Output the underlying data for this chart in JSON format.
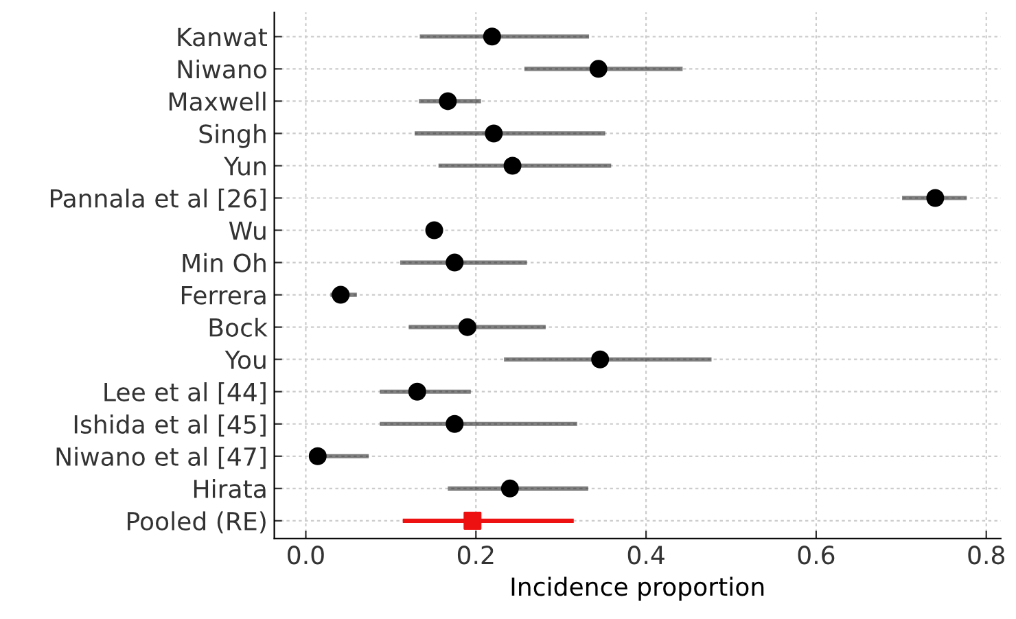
{
  "chart_data": {
    "type": "scatter",
    "orientation": "horizontal",
    "xlabel": "Incidence proportion",
    "categories": [
      "Kanwat",
      "Niwano",
      "Maxwell",
      "Singh",
      "Yun",
      "Pannala et al [26]",
      "Wu",
      "Min Oh",
      "Ferrera",
      "Bock",
      "You",
      "Lee et al [44]",
      "Ishida et al [45]",
      "Niwano et al [47]",
      "Hirata",
      "Pooled (RE)"
    ],
    "xlim": [
      -0.037,
      0.817
    ],
    "xticks": [
      {
        "value": 0,
        "label": "0.0"
      },
      0.2,
      0.4,
      0.6,
      0.8
    ],
    "grid": true,
    "series": [
      {
        "color": "#000000",
        "marker": "circle",
        "values": [
          0.219,
          0.344,
          0.167,
          0.221,
          0.243,
          0.74,
          0.151,
          0.175,
          0.041,
          0.19,
          0.346,
          0.131,
          0.175,
          0.014,
          0.24,
          null
        ],
        "errors": [
          [
            0.134,
            0.333
          ],
          [
            0.257,
            0.443
          ],
          [
            0.133,
            0.206
          ],
          [
            0.128,
            0.352
          ],
          [
            0.156,
            0.359
          ],
          [
            0.701,
            0.777
          ],
          null,
          [
            0.111,
            0.26
          ],
          [
            0.029,
            0.06
          ],
          [
            0.121,
            0.282
          ],
          [
            0.233,
            0.477
          ],
          [
            0.087,
            0.194
          ],
          [
            0.087,
            0.319
          ],
          [
            0.006,
            0.074
          ],
          [
            0.167,
            0.332
          ],
          null
        ]
      },
      {
        "color": "#ee1111",
        "marker": "square",
        "values": [
          null,
          null,
          null,
          null,
          null,
          null,
          null,
          null,
          null,
          null,
          null,
          null,
          null,
          null,
          null,
          0.196
        ],
        "errors": [
          null,
          null,
          null,
          null,
          null,
          null,
          null,
          null,
          null,
          null,
          null,
          null,
          null,
          null,
          null,
          [
            0.114,
            0.315
          ]
        ]
      }
    ]
  }
}
